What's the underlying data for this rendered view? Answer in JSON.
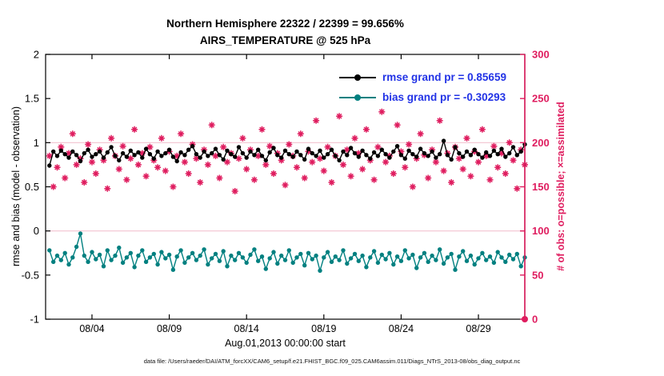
{
  "page": {
    "caption": "data file: /Users/raeder/DAI/ATM_forcXX/CAM6_setup/f.e21.FHIST_BGC.f09_025.CAM6assim.011/Diags_NTrS_2013-08/obs_diag_output.nc"
  },
  "chart_data": {
    "type": "line",
    "title": "Northern Hemisphere 22322 / 22399 = 99.656%",
    "subtitle": "AIRS_TEMPERATURE @ 525 hPa",
    "xlabel": "Aug.01,2013 00:00:00 start",
    "ylabel_left": "rmse and bias (model - observation)",
    "ylabel_right": "# of obs: o=possible; ×=assimilated",
    "xlim_days": [
      1,
      32
    ],
    "ylim_left": [
      -1,
      2
    ],
    "ylim_right": [
      0,
      300
    ],
    "x_ticks": [
      {
        "day": 4,
        "label": "08/04"
      },
      {
        "day": 9,
        "label": "08/09"
      },
      {
        "day": 14,
        "label": "08/14"
      },
      {
        "day": 19,
        "label": "08/19"
      },
      {
        "day": 24,
        "label": "08/24"
      },
      {
        "day": 29,
        "label": "08/29"
      }
    ],
    "left_ticks": [
      {
        "v": 2,
        "label": "2"
      },
      {
        "v": 1.5,
        "label": "1.5"
      },
      {
        "v": 1,
        "label": "1"
      },
      {
        "v": 0.5,
        "label": "0.5"
      },
      {
        "v": 0,
        "label": "0"
      },
      {
        "v": -0.5,
        "label": "-0.5"
      },
      {
        "v": -1,
        "label": "-1"
      }
    ],
    "right_ticks": [
      {
        "v": 300,
        "label": "300"
      },
      {
        "v": 250,
        "label": "250"
      },
      {
        "v": 200,
        "label": "200"
      },
      {
        "v": 150,
        "label": "150"
      },
      {
        "v": 100,
        "label": "100"
      },
      {
        "v": 50,
        "label": "50"
      },
      {
        "v": 0,
        "label": "0"
      }
    ],
    "ref_lines_left": [
      1,
      0
    ],
    "legend": [
      {
        "series": "rmse",
        "label": "rmse grand pr = 0.85659"
      },
      {
        "series": "bias",
        "label": "bias grand pr = -0.30293"
      }
    ],
    "stats": {
      "used": 22322,
      "possible": 22399,
      "pct": "99.656%",
      "rmse_grand": 0.85659,
      "bias_grand": -0.30293
    },
    "colors": {
      "rmse": "#000000",
      "bias": "#008080",
      "obs": "#df1d5f",
      "legend_text": "#2233e6",
      "ref_line": "#f3c3d0",
      "axis": "#000000"
    },
    "series": {
      "start_day": 1.25,
      "step_day": 0.25,
      "rmse": [
        0.74,
        0.9,
        0.85,
        0.91,
        0.87,
        0.83,
        0.9,
        0.86,
        0.79,
        0.88,
        0.92,
        0.84,
        0.87,
        0.9,
        0.83,
        0.89,
        0.95,
        0.85,
        0.8,
        0.88,
        0.84,
        0.91,
        0.86,
        0.89,
        0.83,
        0.93,
        0.87,
        0.82,
        0.9,
        0.85,
        0.88,
        0.92,
        0.84,
        0.79,
        0.89,
        0.86,
        0.92,
        0.96,
        0.87,
        0.83,
        0.9,
        0.85,
        0.88,
        0.93,
        0.86,
        0.81,
        0.91,
        0.87,
        0.84,
        0.95,
        0.88,
        0.83,
        0.9,
        0.86,
        0.92,
        0.85,
        0.8,
        0.89,
        0.94,
        0.86,
        0.83,
        0.91,
        0.87,
        0.84,
        0.9,
        0.86,
        0.81,
        0.93,
        0.88,
        0.85,
        0.91,
        0.83,
        0.87,
        0.92,
        0.85,
        0.8,
        0.9,
        0.86,
        0.94,
        0.88,
        0.84,
        0.91,
        0.86,
        0.82,
        0.89,
        0.85,
        0.92,
        0.87,
        0.83,
        0.9,
        0.96,
        0.86,
        0.82,
        0.91,
        0.87,
        0.84,
        0.93,
        0.88,
        0.85,
        0.9,
        0.83,
        0.87,
        1.02,
        0.86,
        0.81,
        0.95,
        0.88,
        0.84,
        0.9,
        0.86,
        0.92,
        0.87,
        0.83,
        0.89,
        0.85,
        0.91,
        0.87,
        0.93,
        0.84,
        0.88,
        0.95,
        0.86,
        0.9,
        0.98
      ],
      "bias": [
        -0.22,
        -0.35,
        -0.28,
        -0.33,
        -0.25,
        -0.38,
        -0.3,
        -0.18,
        -0.03,
        -0.28,
        -0.35,
        -0.24,
        -0.32,
        -0.27,
        -0.4,
        -0.22,
        -0.33,
        -0.28,
        -0.19,
        -0.36,
        -0.3,
        -0.25,
        -0.41,
        -0.28,
        -0.22,
        -0.35,
        -0.3,
        -0.26,
        -0.38,
        -0.24,
        -0.31,
        -0.27,
        -0.44,
        -0.29,
        -0.22,
        -0.36,
        -0.3,
        -0.25,
        -0.33,
        -0.28,
        -0.21,
        -0.38,
        -0.31,
        -0.26,
        -0.34,
        -0.23,
        -0.4,
        -0.28,
        -0.33,
        -0.25,
        -0.3,
        -0.36,
        -0.27,
        -0.21,
        -0.34,
        -0.29,
        -0.43,
        -0.31,
        -0.24,
        -0.37,
        -0.28,
        -0.33,
        -0.22,
        -0.36,
        -0.3,
        -0.26,
        -0.39,
        -0.25,
        -0.32,
        -0.28,
        -0.45,
        -0.3,
        -0.24,
        -0.35,
        -0.29,
        -0.33,
        -0.22,
        -0.37,
        -0.31,
        -0.26,
        -0.34,
        -0.28,
        -0.41,
        -0.3,
        -0.23,
        -0.36,
        -0.27,
        -0.32,
        -0.25,
        -0.38,
        -0.29,
        -0.34,
        -0.22,
        -0.31,
        -0.27,
        -0.42,
        -0.3,
        -0.25,
        -0.35,
        -0.28,
        -0.33,
        -0.21,
        -0.37,
        -0.3,
        -0.26,
        -0.44,
        -0.29,
        -0.23,
        -0.34,
        -0.28,
        -0.38,
        -0.31,
        -0.25,
        -0.33,
        -0.29,
        -0.36,
        -0.24,
        -0.3,
        -0.35,
        -0.27,
        -0.32,
        -0.26,
        -0.4,
        -0.3
      ],
      "obs_assimilated": [
        185,
        150,
        172,
        195,
        160,
        188,
        210,
        175,
        182,
        155,
        198,
        178,
        165,
        192,
        180,
        148,
        205,
        185,
        170,
        196,
        158,
        182,
        215,
        175,
        188,
        162,
        195,
        180,
        172,
        205,
        168,
        190,
        150,
        185,
        210,
        178,
        165,
        198,
        182,
        155,
        192,
        175,
        220,
        185,
        160,
        195,
        178,
        188,
        145,
        182,
        205,
        170,
        192,
        158,
        185,
        215,
        175,
        196,
        165,
        188,
        180,
        152,
        198,
        185,
        172,
        210,
        160,
        190,
        178,
        225,
        182,
        168,
        195,
        155,
        185,
        230,
        175,
        192,
        162,
        205,
        188,
        170,
        215,
        180,
        158,
        195,
        235,
        178,
        185,
        165,
        220,
        190,
        172,
        198,
        150,
        182,
        210,
        186,
        160,
        192,
        178,
        225,
        168,
        188,
        155,
        195,
        182,
        170,
        205,
        162,
        190,
        178,
        215,
        185,
        158,
        196,
        172,
        188,
        165,
        200,
        180,
        148,
        192,
        175
      ]
    }
  }
}
